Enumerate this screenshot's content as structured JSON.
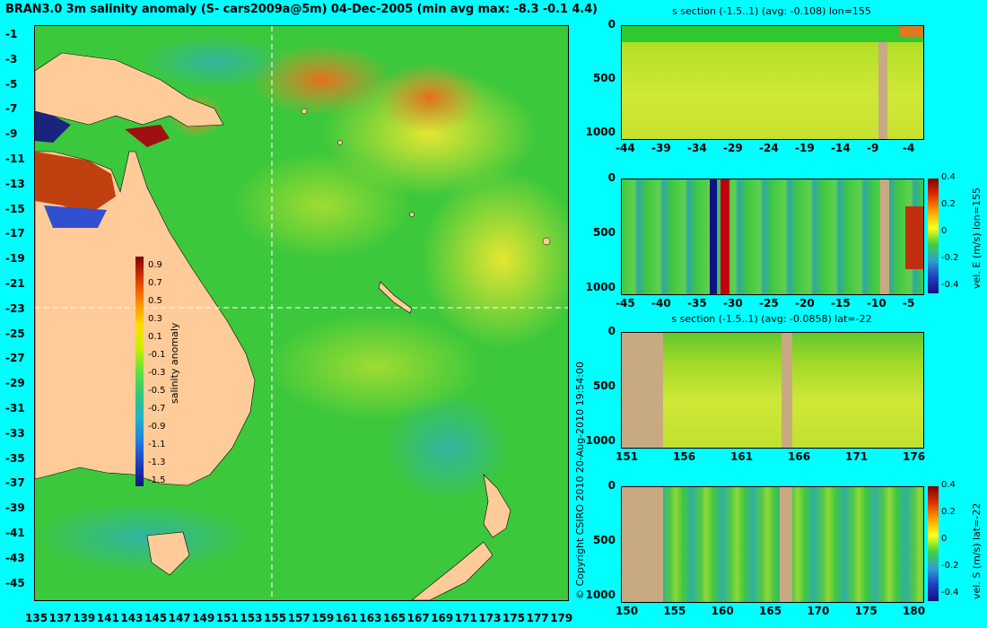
{
  "map": {
    "title": "BRAN3.0 3m salinity anomaly (S- cars2009a@5m) 04-Dec-2005 (min avg max: -8.3 -0.1 4.4)",
    "lat_ticks": [
      "-1",
      "-3",
      "-5",
      "-7",
      "-9",
      "-11",
      "-13",
      "-15",
      "-17",
      "-19",
      "-21",
      "-23",
      "-25",
      "-27",
      "-29",
      "-31",
      "-33",
      "-35",
      "-37",
      "-39",
      "-41",
      "-43",
      "-45"
    ],
    "lon_ticks": [
      "135",
      "137",
      "139",
      "141",
      "143",
      "145",
      "147",
      "149",
      "151",
      "153",
      "155",
      "157",
      "159",
      "161",
      "163",
      "165",
      "167",
      "169",
      "171",
      "173",
      "175",
      "177",
      "179"
    ],
    "colorbar": {
      "label": "salinity anomaly",
      "ticks": [
        "0.9",
        "0.7",
        "0.5",
        "0.3",
        "0.1",
        "-0.1",
        "-0.3",
        "-0.5",
        "-0.7",
        "-0.9",
        "-1.1",
        "-1.3",
        "-1.5"
      ]
    },
    "copyright": "© Copyright CSIRO 2010   20-Aug-2010 19:54:00",
    "colors": {
      "land": "#ffcc99",
      "ocean_base": "#3cc83c",
      "background": "#00ffff"
    }
  },
  "panels": [
    {
      "title": "s section (-1.5..1) (avg: -0.108) lon=155",
      "x_ticks": [
        "-44",
        "-39",
        "-34",
        "-29",
        "-24",
        "-19",
        "-14",
        "-9",
        "-4"
      ],
      "y_ticks": [
        "0",
        "500",
        "1000"
      ]
    },
    {
      "title": "",
      "x_ticks": [
        "-45",
        "-40",
        "-35",
        "-30",
        "-25",
        "-20",
        "-15",
        "-10",
        "-5"
      ],
      "y_ticks": [
        "0",
        "500",
        "1000"
      ],
      "cb_label": "vel. E (m/s) lon=155",
      "cb_ticks": [
        "0.4",
        "0.2",
        "0",
        "-0.2",
        "-0.4"
      ]
    },
    {
      "title": "s section (-1.5..1) (avg: -0.0858) lat=-22",
      "x_ticks": [
        "151",
        "156",
        "161",
        "166",
        "171",
        "176"
      ],
      "y_ticks": [
        "0",
        "500",
        "1000"
      ]
    },
    {
      "title": "",
      "x_ticks": [
        "150",
        "155",
        "160",
        "165",
        "170",
        "175",
        "180"
      ],
      "y_ticks": [
        "0",
        "500",
        "1000"
      ],
      "cb_label": "vel. S (m/s) lat=-22",
      "cb_ticks": [
        "0.4",
        "0.2",
        "0",
        "-0.2",
        "-0.4"
      ]
    }
  ]
}
